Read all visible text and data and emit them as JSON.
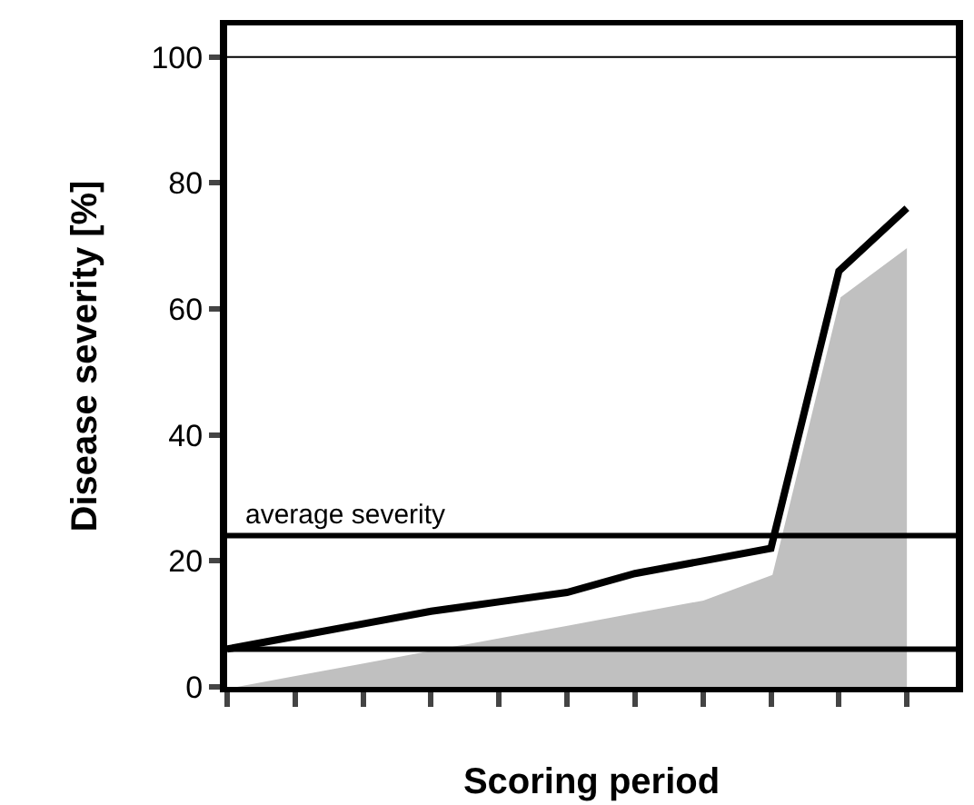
{
  "chart_data": {
    "type": "line",
    "xlabel": "Scoring period",
    "ylabel": "Disease severity [%]",
    "categories": [
      null,
      null,
      null,
      null,
      null,
      null,
      null,
      null,
      null,
      null,
      null
    ],
    "ylim": [
      0,
      105
    ],
    "yticks": [
      0,
      20,
      40,
      60,
      80,
      100
    ],
    "tick_labels": "y",
    "series": [
      {
        "type": "area",
        "color": "#c0c0c0",
        "values": [
          0,
          2,
          4,
          6,
          8,
          10,
          12,
          14,
          18,
          62,
          70
        ]
      },
      {
        "color": "#000000",
        "values": [
          6,
          8,
          10,
          12,
          13.5,
          15,
          18,
          20,
          22,
          66,
          76
        ]
      }
    ],
    "ref_lines": [
      {
        "axis": "y",
        "value": 24,
        "label": "average severity"
      },
      {
        "axis": "y",
        "value": 6
      },
      {
        "axis": "y",
        "value": 100
      }
    ]
  }
}
